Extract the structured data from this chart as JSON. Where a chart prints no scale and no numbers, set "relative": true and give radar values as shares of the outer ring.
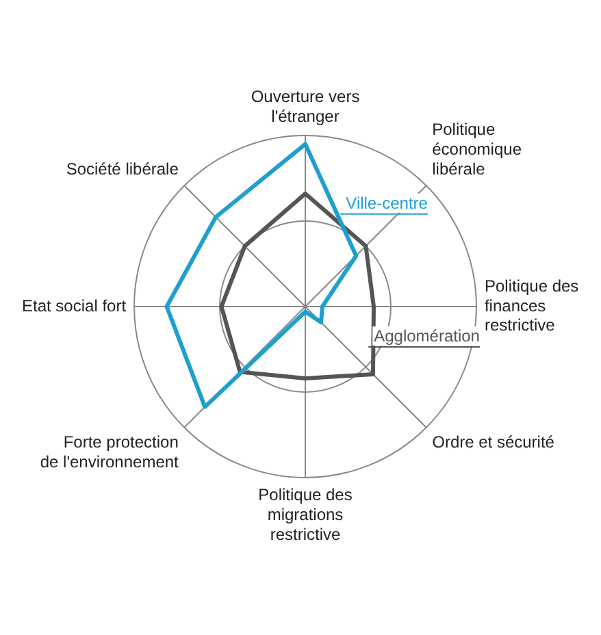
{
  "chart_data": {
    "type": "radar",
    "relative": true,
    "grid": true,
    "marker": "none",
    "legend": false,
    "categories": [
      "Ouverture vers l'étranger",
      "Politique économique libérale",
      "Politique des finances restrictive",
      "Ordre et sécurité",
      "Politique des migrations restrictive",
      "Forte protection de l'environnement",
      "Etat social fort",
      "Société libérale"
    ],
    "series": [
      {
        "name": "Ville-centre",
        "color": "#1e9fd0",
        "values": [
          0.95,
          0.42,
          0.1,
          0.13,
          0.03,
          0.83,
          0.81,
          0.74
        ]
      },
      {
        "name": "Agglomération",
        "color": "#555555",
        "values": [
          0.66,
          0.5,
          0.4,
          0.56,
          0.42,
          0.54,
          0.49,
          0.5
        ]
      }
    ]
  }
}
